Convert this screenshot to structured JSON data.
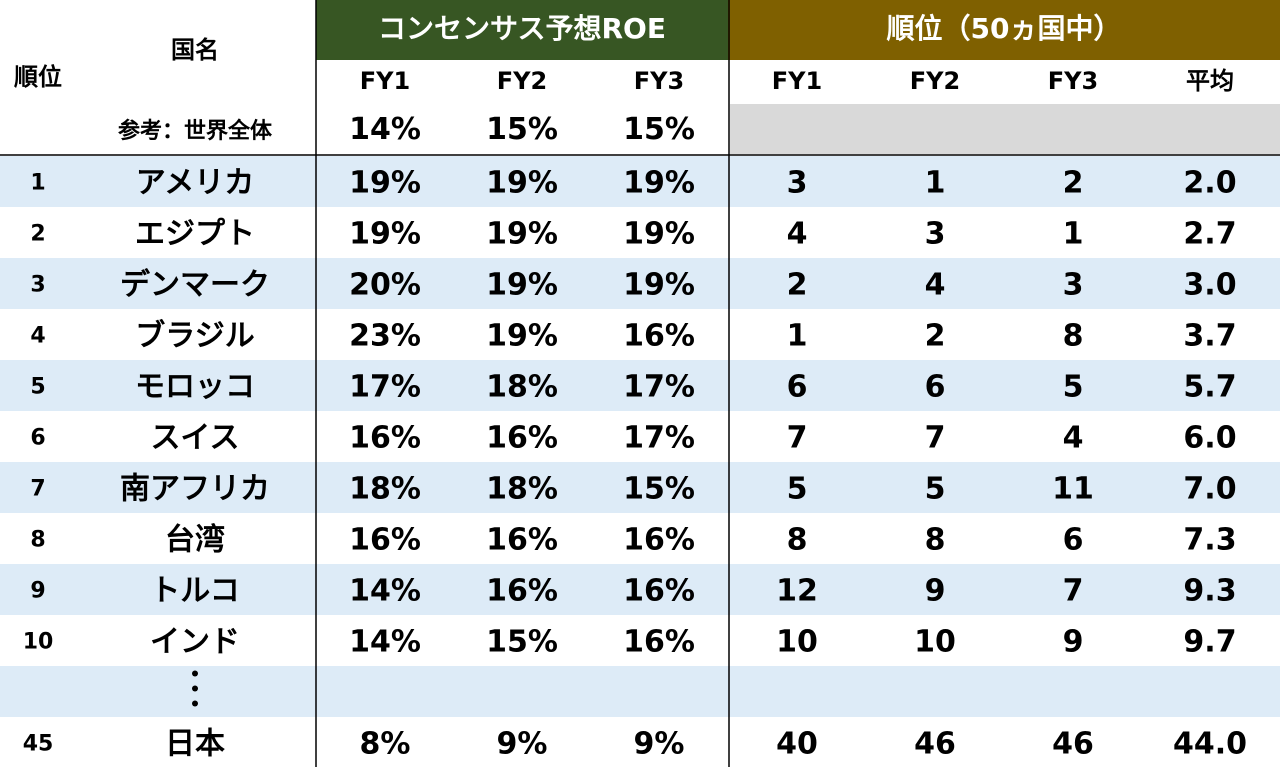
{
  "chart_data": {
    "type": "table",
    "header": {
      "rank_label": "順位",
      "country_label": "国名",
      "roe_group_label": "コンセンサス予想ROE",
      "rank_group_label": "順位（50ヵ国中）",
      "roe_columns": [
        "FY1",
        "FY2",
        "FY3"
      ],
      "rank_columns": [
        "FY1",
        "FY2",
        "FY3",
        "平均"
      ]
    },
    "reference": {
      "label": "参考：世界全体",
      "roe": [
        "14%",
        "15%",
        "15%"
      ]
    },
    "rows": [
      {
        "rank": "1",
        "country": "アメリカ",
        "roe": [
          "19%",
          "19%",
          "19%"
        ],
        "ranks": [
          "3",
          "1",
          "2",
          "2.0"
        ]
      },
      {
        "rank": "2",
        "country": "エジプト",
        "roe": [
          "19%",
          "19%",
          "19%"
        ],
        "ranks": [
          "4",
          "3",
          "1",
          "2.7"
        ]
      },
      {
        "rank": "3",
        "country": "デンマーク",
        "roe": [
          "20%",
          "19%",
          "19%"
        ],
        "ranks": [
          "2",
          "4",
          "3",
          "3.0"
        ]
      },
      {
        "rank": "4",
        "country": "ブラジル",
        "roe": [
          "23%",
          "19%",
          "16%"
        ],
        "ranks": [
          "1",
          "2",
          "8",
          "3.7"
        ]
      },
      {
        "rank": "5",
        "country": "モロッコ",
        "roe": [
          "17%",
          "18%",
          "17%"
        ],
        "ranks": [
          "6",
          "6",
          "5",
          "5.7"
        ]
      },
      {
        "rank": "6",
        "country": "スイス",
        "roe": [
          "16%",
          "16%",
          "17%"
        ],
        "ranks": [
          "7",
          "7",
          "4",
          "6.0"
        ]
      },
      {
        "rank": "7",
        "country": "南アフリカ",
        "roe": [
          "18%",
          "18%",
          "15%"
        ],
        "ranks": [
          "5",
          "5",
          "11",
          "7.0"
        ]
      },
      {
        "rank": "8",
        "country": "台湾",
        "roe": [
          "16%",
          "16%",
          "16%"
        ],
        "ranks": [
          "8",
          "8",
          "6",
          "7.3"
        ]
      },
      {
        "rank": "9",
        "country": "トルコ",
        "roe": [
          "14%",
          "16%",
          "16%"
        ],
        "ranks": [
          "12",
          "9",
          "7",
          "9.3"
        ]
      },
      {
        "rank": "10",
        "country": "インド",
        "roe": [
          "14%",
          "15%",
          "16%"
        ],
        "ranks": [
          "10",
          "10",
          "9",
          "9.7"
        ]
      },
      {
        "rank": "",
        "country": "・・・",
        "roe": [
          "",
          "",
          ""
        ],
        "ranks": [
          "",
          "",
          "",
          ""
        ],
        "ellipsis": true
      },
      {
        "rank": "45",
        "country": "日本",
        "roe": [
          "8%",
          "9%",
          "9%"
        ],
        "ranks": [
          "40",
          "46",
          "46",
          "44.0"
        ]
      }
    ],
    "colors": {
      "roe_header_bg": "#375623",
      "rank_header_bg": "#7f6000",
      "header_text": "#ffffff",
      "band_bg": "#ddebf7",
      "reference_rank_bg": "#d9d9d9"
    }
  }
}
